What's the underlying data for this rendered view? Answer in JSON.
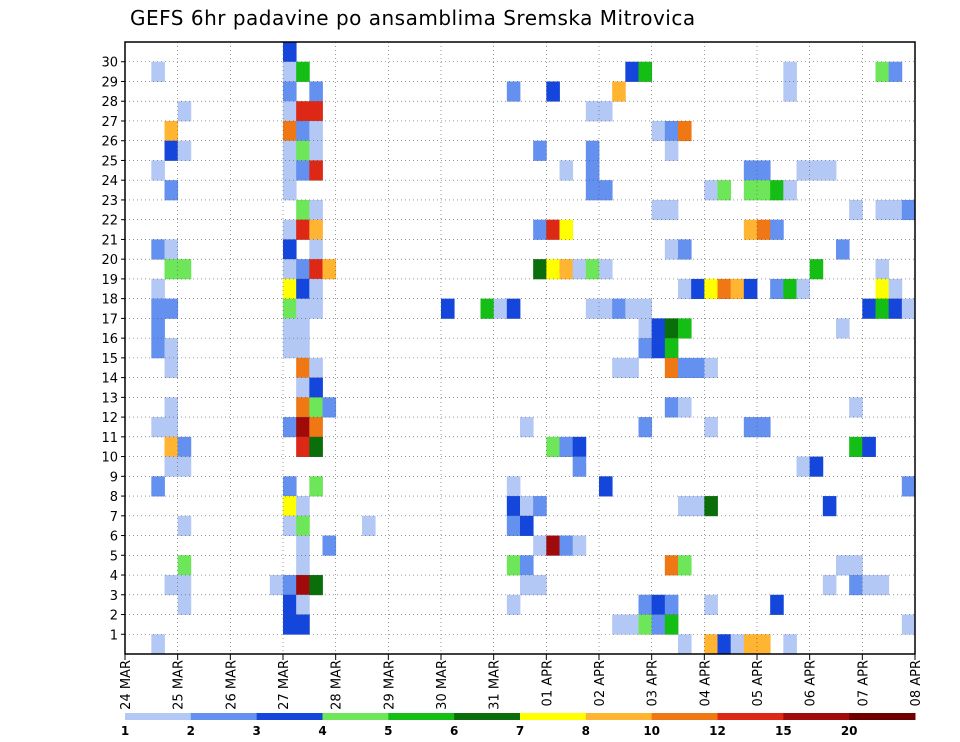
{
  "title": "GEFS 6hr padavine po ansamblima Sremska Mitrovica",
  "chart_data": {
    "type": "heatmap",
    "title": "GEFS 6hr padavine po ansamblima Sremska Mitrovica",
    "xlabel": "",
    "ylabel": "",
    "x_ticks": [
      "24 MAR",
      "25 MAR",
      "26 MAR",
      "27 MAR",
      "28 MAR",
      "29 MAR",
      "30 MAR",
      "31 MAR",
      "01 APR",
      "02 APR",
      "03 APR",
      "04 APR",
      "05 APR",
      "06 APR",
      "07 APR",
      "08 APR"
    ],
    "y_ticks": [
      "1",
      "2",
      "3",
      "4",
      "5",
      "6",
      "7",
      "8",
      "9",
      "10",
      "11",
      "12",
      "13",
      "14",
      "15",
      "16",
      "17",
      "18",
      "19",
      "20",
      "21",
      "22",
      "23",
      "24",
      "25",
      "26",
      "27",
      "28",
      "29",
      "30"
    ],
    "xlim_days": [
      0,
      15
    ],
    "ylim_members": [
      0,
      30
    ],
    "grid": true,
    "time_step_hours": 6,
    "colorbar": {
      "labels": [
        "1",
        "2",
        "3",
        "4",
        "5",
        "6",
        "7",
        "8",
        "10",
        "12",
        "15",
        "20"
      ],
      "colors": [
        "#b4c8f5",
        "#6490f0",
        "#1446dc",
        "#6ee65a",
        "#14be14",
        "#0a6e0a",
        "#ffff00",
        "#ffb432",
        "#f07814",
        "#dc2814",
        "#a00a0a",
        "#6e0000"
      ]
    },
    "cells": [
      [
        27.0,
        30,
        2
      ],
      [
        24.5,
        29,
        0
      ],
      [
        27.0,
        29,
        0
      ],
      [
        27.25,
        29,
        4
      ],
      [
        33.5,
        29,
        2
      ],
      [
        33.75,
        29,
        4
      ],
      [
        36.5,
        29,
        0
      ],
      [
        38.25,
        29,
        3
      ],
      [
        38.5,
        29,
        1
      ],
      [
        27.0,
        28,
        1
      ],
      [
        27.5,
        28,
        1
      ],
      [
        31.25,
        28,
        1
      ],
      [
        32.0,
        28,
        2
      ],
      [
        33.25,
        28,
        7
      ],
      [
        36.5,
        28,
        0
      ],
      [
        25.0,
        27,
        0
      ],
      [
        27.0,
        27,
        0
      ],
      [
        27.25,
        27,
        9
      ],
      [
        27.5,
        27,
        9
      ],
      [
        32.75,
        27,
        0
      ],
      [
        33.0,
        27,
        0
      ],
      [
        24.75,
        26,
        7
      ],
      [
        27.0,
        26,
        8
      ],
      [
        27.25,
        26,
        1
      ],
      [
        27.5,
        26,
        0
      ],
      [
        34.0,
        26,
        0
      ],
      [
        34.25,
        26,
        1
      ],
      [
        34.5,
        26,
        8
      ],
      [
        24.75,
        25,
        2
      ],
      [
        25.0,
        25,
        0
      ],
      [
        27.0,
        25,
        0
      ],
      [
        27.25,
        25,
        3
      ],
      [
        27.5,
        25,
        0
      ],
      [
        31.75,
        25,
        1
      ],
      [
        32.75,
        25,
        1
      ],
      [
        34.25,
        25,
        0
      ],
      [
        24.5,
        24,
        0
      ],
      [
        27.0,
        24,
        0
      ],
      [
        27.25,
        24,
        1
      ],
      [
        27.5,
        24,
        9
      ],
      [
        32.25,
        24,
        0
      ],
      [
        32.75,
        24,
        1
      ],
      [
        35.75,
        24,
        1
      ],
      [
        36.0,
        24,
        1
      ],
      [
        36.75,
        24,
        0
      ],
      [
        37.0,
        24,
        0
      ],
      [
        37.25,
        24,
        0
      ],
      [
        24.75,
        23,
        1
      ],
      [
        27.0,
        23,
        0
      ],
      [
        32.75,
        23,
        1
      ],
      [
        33.0,
        23,
        1
      ],
      [
        35.0,
        23,
        0
      ],
      [
        35.25,
        23,
        3
      ],
      [
        35.75,
        23,
        3
      ],
      [
        36.0,
        23,
        3
      ],
      [
        36.25,
        23,
        4
      ],
      [
        36.5,
        23,
        0
      ],
      [
        27.25,
        22,
        3
      ],
      [
        27.5,
        22,
        0
      ],
      [
        34.0,
        22,
        0
      ],
      [
        34.25,
        22,
        0
      ],
      [
        37.75,
        22,
        0
      ],
      [
        38.25,
        22,
        0
      ],
      [
        38.5,
        22,
        0
      ],
      [
        38.75,
        22,
        1
      ],
      [
        27.0,
        21,
        0
      ],
      [
        27.25,
        21,
        9
      ],
      [
        27.5,
        21,
        7
      ],
      [
        31.75,
        21,
        1
      ],
      [
        32.0,
        21,
        9
      ],
      [
        32.25,
        21,
        6
      ],
      [
        35.75,
        21,
        7
      ],
      [
        36.0,
        21,
        8
      ],
      [
        36.25,
        21,
        1
      ],
      [
        24.5,
        20,
        1
      ],
      [
        24.75,
        20,
        0
      ],
      [
        27.0,
        20,
        2
      ],
      [
        27.5,
        20,
        0
      ],
      [
        34.25,
        20,
        0
      ],
      [
        34.5,
        20,
        1
      ],
      [
        37.5,
        20,
        1
      ],
      [
        24.75,
        19,
        3
      ],
      [
        25.0,
        19,
        3
      ],
      [
        27.0,
        19,
        0
      ],
      [
        27.25,
        19,
        1
      ],
      [
        27.5,
        19,
        9
      ],
      [
        27.75,
        19,
        7
      ],
      [
        31.75,
        19,
        5
      ],
      [
        32.0,
        19,
        6
      ],
      [
        32.25,
        19,
        7
      ],
      [
        32.5,
        19,
        0
      ],
      [
        32.75,
        19,
        3
      ],
      [
        33.0,
        19,
        0
      ],
      [
        37.0,
        19,
        4
      ],
      [
        38.25,
        19,
        0
      ],
      [
        24.5,
        18,
        0
      ],
      [
        27.0,
        18,
        6
      ],
      [
        27.25,
        18,
        2
      ],
      [
        27.5,
        18,
        0
      ],
      [
        34.5,
        18,
        0
      ],
      [
        34.75,
        18,
        2
      ],
      [
        35.0,
        18,
        6
      ],
      [
        35.25,
        18,
        8
      ],
      [
        35.5,
        18,
        7
      ],
      [
        35.75,
        18,
        2
      ],
      [
        36.25,
        18,
        1
      ],
      [
        36.5,
        18,
        4
      ],
      [
        36.75,
        18,
        0
      ],
      [
        38.25,
        18,
        6
      ],
      [
        38.5,
        18,
        0
      ],
      [
        24.5,
        17,
        1
      ],
      [
        24.75,
        17,
        1
      ],
      [
        27.0,
        17,
        3
      ],
      [
        27.25,
        17,
        0
      ],
      [
        27.5,
        17,
        0
      ],
      [
        30.0,
        17,
        2
      ],
      [
        30.75,
        17,
        4
      ],
      [
        31.0,
        17,
        0
      ],
      [
        31.25,
        17,
        2
      ],
      [
        32.75,
        17,
        0
      ],
      [
        33.0,
        17,
        0
      ],
      [
        33.25,
        17,
        1
      ],
      [
        33.5,
        17,
        0
      ],
      [
        33.75,
        17,
        0
      ],
      [
        38.0,
        17,
        2
      ],
      [
        38.25,
        17,
        4
      ],
      [
        38.5,
        17,
        2
      ],
      [
        38.75,
        17,
        0
      ],
      [
        24.5,
        16,
        1
      ],
      [
        27.0,
        16,
        0
      ],
      [
        27.25,
        16,
        0
      ],
      [
        33.75,
        16,
        0
      ],
      [
        34.0,
        16,
        2
      ],
      [
        34.25,
        16,
        5
      ],
      [
        34.5,
        16,
        4
      ],
      [
        37.5,
        16,
        0
      ],
      [
        24.5,
        15,
        1
      ],
      [
        24.75,
        15,
        0
      ],
      [
        27.0,
        15,
        0
      ],
      [
        27.25,
        15,
        0
      ],
      [
        33.75,
        15,
        1
      ],
      [
        34.0,
        15,
        2
      ],
      [
        34.25,
        15,
        4
      ],
      [
        24.75,
        14,
        0
      ],
      [
        27.25,
        14,
        8
      ],
      [
        27.5,
        14,
        0
      ],
      [
        33.25,
        14,
        0
      ],
      [
        33.5,
        14,
        0
      ],
      [
        34.25,
        14,
        8
      ],
      [
        34.5,
        14,
        1
      ],
      [
        34.75,
        14,
        1
      ],
      [
        35.0,
        14,
        0
      ],
      [
        27.25,
        13,
        0
      ],
      [
        27.5,
        13,
        2
      ],
      [
        24.75,
        12,
        0
      ],
      [
        27.25,
        12,
        8
      ],
      [
        27.5,
        12,
        3
      ],
      [
        27.75,
        12,
        1
      ],
      [
        34.25,
        12,
        1
      ],
      [
        34.5,
        12,
        0
      ],
      [
        37.75,
        12,
        0
      ],
      [
        24.5,
        11,
        0
      ],
      [
        24.75,
        11,
        0
      ],
      [
        27.0,
        11,
        1
      ],
      [
        27.25,
        11,
        10
      ],
      [
        27.5,
        11,
        8
      ],
      [
        31.5,
        11,
        0
      ],
      [
        33.75,
        11,
        1
      ],
      [
        35.0,
        11,
        0
      ],
      [
        35.75,
        11,
        1
      ],
      [
        36.0,
        11,
        1
      ],
      [
        24.75,
        10,
        7
      ],
      [
        25.0,
        10,
        1
      ],
      [
        27.25,
        10,
        9
      ],
      [
        27.5,
        10,
        5
      ],
      [
        32.0,
        10,
        3
      ],
      [
        32.25,
        10,
        1
      ],
      [
        32.5,
        10,
        2
      ],
      [
        37.75,
        10,
        4
      ],
      [
        38.0,
        10,
        2
      ],
      [
        24.75,
        9,
        0
      ],
      [
        25.0,
        9,
        0
      ],
      [
        32.5,
        9,
        1
      ],
      [
        36.75,
        9,
        0
      ],
      [
        37.0,
        9,
        2
      ],
      [
        24.5,
        8,
        1
      ],
      [
        27.0,
        8,
        1
      ],
      [
        27.5,
        8,
        3
      ],
      [
        31.25,
        8,
        0
      ],
      [
        33.0,
        8,
        2
      ],
      [
        38.75,
        8,
        1
      ],
      [
        27.0,
        7,
        6
      ],
      [
        27.25,
        7,
        0
      ],
      [
        31.25,
        7,
        2
      ],
      [
        31.5,
        7,
        0
      ],
      [
        31.75,
        7,
        1
      ],
      [
        34.5,
        7,
        0
      ],
      [
        34.75,
        7,
        0
      ],
      [
        35.0,
        7,
        5
      ],
      [
        37.25,
        7,
        2
      ],
      [
        25.0,
        6,
        0
      ],
      [
        27.0,
        6,
        0
      ],
      [
        27.25,
        6,
        3
      ],
      [
        28.5,
        6,
        0
      ],
      [
        31.25,
        6,
        1
      ],
      [
        31.5,
        6,
        2
      ],
      [
        27.25,
        5,
        0
      ],
      [
        27.75,
        5,
        1
      ],
      [
        31.75,
        5,
        0
      ],
      [
        32.0,
        5,
        10
      ],
      [
        32.25,
        5,
        1
      ],
      [
        32.5,
        5,
        0
      ],
      [
        25.0,
        4,
        3
      ],
      [
        27.25,
        4,
        0
      ],
      [
        31.25,
        4,
        3
      ],
      [
        31.5,
        4,
        1
      ],
      [
        34.25,
        4,
        8
      ],
      [
        34.5,
        4,
        3
      ],
      [
        37.5,
        4,
        0
      ],
      [
        37.75,
        4,
        0
      ],
      [
        24.75,
        3,
        0
      ],
      [
        25.0,
        3,
        0
      ],
      [
        26.75,
        3,
        0
      ],
      [
        27.0,
        3,
        1
      ],
      [
        27.25,
        3,
        10
      ],
      [
        27.5,
        3,
        5
      ],
      [
        31.5,
        3,
        0
      ],
      [
        31.75,
        3,
        0
      ],
      [
        37.25,
        3,
        0
      ],
      [
        37.75,
        3,
        1
      ],
      [
        38.0,
        3,
        0
      ],
      [
        38.25,
        3,
        0
      ],
      [
        25.0,
        2,
        0
      ],
      [
        27.0,
        2,
        2
      ],
      [
        27.25,
        2,
        0
      ],
      [
        31.25,
        2,
        0
      ],
      [
        33.75,
        2,
        1
      ],
      [
        34.0,
        2,
        2
      ],
      [
        34.25,
        2,
        1
      ],
      [
        35.0,
        2,
        0
      ],
      [
        36.25,
        2,
        2
      ],
      [
        27.0,
        1,
        2
      ],
      [
        27.25,
        1,
        2
      ],
      [
        33.25,
        1,
        0
      ],
      [
        33.5,
        1,
        0
      ],
      [
        33.75,
        1,
        3
      ],
      [
        34.0,
        1,
        1
      ],
      [
        34.25,
        1,
        4
      ],
      [
        38.75,
        1,
        0
      ],
      [
        24.5,
        0,
        0
      ],
      [
        34.5,
        0,
        0
      ],
      [
        35.0,
        0,
        7
      ],
      [
        35.25,
        0,
        2
      ],
      [
        35.5,
        0,
        0
      ],
      [
        35.75,
        0,
        7
      ],
      [
        36.0,
        0,
        7
      ],
      [
        36.5,
        0,
        0
      ]
    ]
  }
}
